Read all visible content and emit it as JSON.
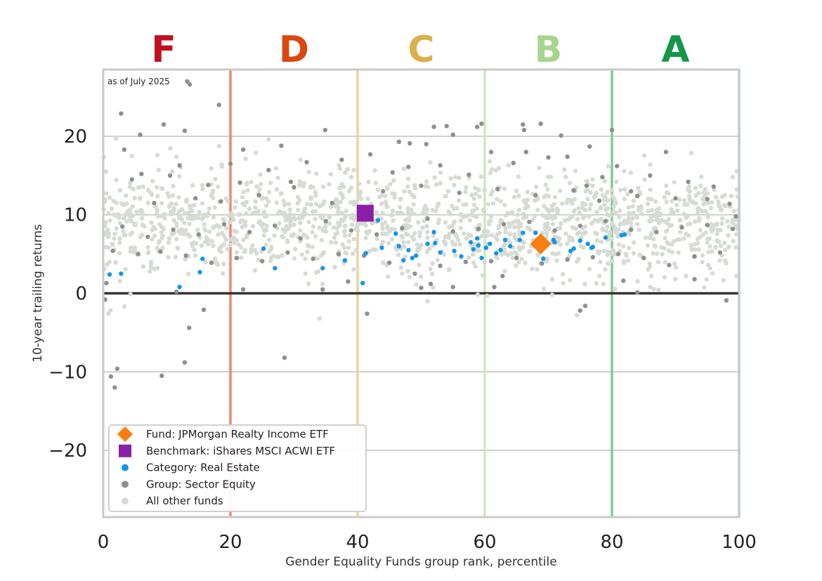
{
  "chart_data": {
    "type": "scatter",
    "xlabel": "Gender Equality Funds group rank, percentile",
    "ylabel": "10-year trailing returns",
    "xlim": [
      0,
      100
    ],
    "ylim": [
      -28.5,
      28.5
    ],
    "xticks": [
      "0",
      "20",
      "40",
      "60",
      "80",
      "100"
    ],
    "yticks": [
      "−20",
      "−10",
      "0",
      "10",
      "20"
    ],
    "annotation": "as of July 2025",
    "grades": [
      {
        "label": "F",
        "x": 9.5,
        "color": "#c0101f"
      },
      {
        "label": "D",
        "x": 30.0,
        "color": "#d9480f"
      },
      {
        "label": "C",
        "x": 50.0,
        "color": "#d9b04d"
      },
      {
        "label": "B",
        "x": 70.0,
        "color": "#a8d58e"
      },
      {
        "label": "A",
        "x": 90.0,
        "color": "#16964a"
      }
    ],
    "grade_boundaries": [
      {
        "x": 20,
        "color": "#ec8a6e"
      },
      {
        "x": 40,
        "color": "#ecd4a0"
      },
      {
        "x": 60,
        "color": "#cfe8c0"
      },
      {
        "x": 80,
        "color": "#7ecb94"
      },
      {
        "x": 100,
        "color": "#8fd0a4"
      }
    ],
    "grid": true,
    "legend_position": "lower-left",
    "series": [
      {
        "name": "Fund: JPMorgan Realty Income ETF",
        "marker": "diamond",
        "color": "#f77f0f",
        "points": [
          [
            68.8,
            6.3
          ]
        ]
      },
      {
        "name": "Benchmark: iShares MSCI ACWI ETF",
        "marker": "square",
        "color": "#8a1fa6",
        "points": [
          [
            41.2,
            10.2
          ]
        ]
      },
      {
        "name": "Category: Real Estate",
        "marker": "circle",
        "color": "#1296e8",
        "points": [
          [
            1.0,
            2.4
          ],
          [
            2.8,
            2.5
          ],
          [
            12.0,
            0.8
          ],
          [
            15.2,
            2.7
          ],
          [
            15.6,
            4.4
          ],
          [
            25.2,
            5.7
          ],
          [
            27.0,
            3.2
          ],
          [
            34.5,
            3.2
          ],
          [
            38.0,
            4.2
          ],
          [
            40.8,
            1.3
          ],
          [
            41.3,
            5.1
          ],
          [
            43.2,
            9.3
          ],
          [
            43.8,
            5.8
          ],
          [
            46.0,
            7.6
          ],
          [
            46.5,
            6.0
          ],
          [
            47.2,
            4.2
          ],
          [
            48.0,
            5.5
          ],
          [
            48.6,
            4.5
          ],
          [
            49.2,
            4.8
          ],
          [
            51.0,
            6.3
          ],
          [
            52.0,
            7.8
          ],
          [
            52.2,
            6.4
          ],
          [
            53.0,
            5.2
          ],
          [
            55.2,
            5.4
          ],
          [
            56.3,
            4.7
          ],
          [
            57.8,
            6.5
          ],
          [
            58.2,
            5.6
          ],
          [
            58.8,
            7.0
          ],
          [
            59.0,
            6.1
          ],
          [
            59.5,
            4.5
          ],
          [
            60.2,
            5.8
          ],
          [
            60.8,
            6.3
          ],
          [
            61.8,
            5.1
          ],
          [
            62.5,
            5.5
          ],
          [
            63.2,
            6.8
          ],
          [
            64.0,
            6.0
          ],
          [
            65.5,
            6.8
          ],
          [
            66.0,
            7.7
          ],
          [
            68.0,
            7.7
          ],
          [
            69.2,
            4.4
          ],
          [
            70.8,
            6.8
          ],
          [
            71.0,
            6.5
          ],
          [
            73.5,
            5.4
          ],
          [
            74.0,
            5.7
          ],
          [
            75.0,
            6.7
          ],
          [
            76.2,
            6.3
          ],
          [
            76.8,
            5.8
          ],
          [
            77.0,
            5.9
          ],
          [
            79.0,
            7.1
          ],
          [
            81.5,
            7.4
          ],
          [
            82.0,
            7.5
          ]
        ]
      },
      {
        "name": "Group: Sector Equity",
        "marker": "circle",
        "color": "#8f8f8f",
        "points": [
          [
            2.8,
            22.9
          ],
          [
            3.3,
            18.3
          ],
          [
            5.8,
            20.2
          ],
          [
            13.2,
            27.0
          ],
          [
            13.6,
            26.6
          ],
          [
            9.5,
            21.5
          ],
          [
            12.8,
            20.7
          ],
          [
            18.2,
            24.0
          ],
          [
            34.9,
            20.8
          ],
          [
            46.5,
            19.3
          ],
          [
            48.2,
            19.1
          ],
          [
            50.8,
            19.0
          ],
          [
            52.0,
            21.2
          ],
          [
            54.0,
            21.3
          ],
          [
            55.0,
            20.2
          ],
          [
            58.8,
            21.2
          ],
          [
            59.5,
            21.6
          ],
          [
            66.0,
            21.5
          ],
          [
            66.2,
            20.8
          ],
          [
            68.8,
            21.6
          ],
          [
            72.0,
            20.1
          ],
          [
            76.5,
            18.7
          ],
          [
            80.0,
            20.8
          ],
          [
            28.0,
            18.8
          ],
          [
            21.5,
            14.1
          ],
          [
            24.5,
            12.5
          ],
          [
            30.0,
            13.5
          ],
          [
            36.0,
            11.5
          ],
          [
            44.0,
            13.0
          ],
          [
            50.0,
            13.7
          ],
          [
            56.0,
            12.8
          ],
          [
            62.0,
            13.3
          ],
          [
            68.0,
            12.5
          ],
          [
            74.0,
            13.1
          ],
          [
            78.0,
            11.8
          ],
          [
            84.0,
            12.4
          ],
          [
            90.0,
            12.1
          ],
          [
            95.0,
            12.0
          ],
          [
            3.0,
            8.5
          ],
          [
            7.0,
            7.2
          ],
          [
            11.0,
            8.1
          ],
          [
            15.0,
            7.5
          ],
          [
            19.0,
            8.8
          ],
          [
            23.0,
            7.8
          ],
          [
            27.0,
            8.6
          ],
          [
            31.0,
            7.0
          ],
          [
            35.0,
            9.2
          ],
          [
            39.0,
            8.0
          ],
          [
            43.0,
            7.5
          ],
          [
            47.0,
            8.3
          ],
          [
            51.0,
            9.5
          ],
          [
            55.0,
            7.9
          ],
          [
            59.0,
            8.2
          ],
          [
            63.0,
            8.8
          ],
          [
            67.0,
            9.1
          ],
          [
            71.0,
            8.0
          ],
          [
            75.0,
            8.6
          ],
          [
            79.0,
            9.2
          ],
          [
            83.0,
            8.1
          ],
          [
            87.0,
            7.8
          ],
          [
            91.0,
            8.4
          ],
          [
            95.0,
            8.7
          ],
          [
            99.0,
            8.2
          ],
          [
            1.5,
            5.4
          ],
          [
            5.5,
            5.0
          ],
          [
            9.0,
            5.3
          ],
          [
            13.0,
            4.8
          ],
          [
            17.0,
            3.9
          ],
          [
            21.0,
            4.5
          ],
          [
            25.0,
            4.1
          ],
          [
            29.0,
            5.2
          ],
          [
            33.0,
            4.4
          ],
          [
            37.0,
            5.0
          ],
          [
            41.0,
            4.8
          ],
          [
            45.0,
            3.9
          ],
          [
            49.0,
            2.5
          ],
          [
            53.0,
            3.5
          ],
          [
            57.0,
            4.0
          ],
          [
            61.0,
            4.1
          ],
          [
            65.0,
            4.5
          ],
          [
            69.0,
            3.8
          ],
          [
            73.0,
            4.3
          ],
          [
            77.0,
            4.6
          ],
          [
            81.0,
            5.0
          ],
          [
            85.0,
            4.5
          ],
          [
            89.0,
            3.6
          ],
          [
            93.0,
            4.7
          ],
          [
            97.0,
            5.2
          ],
          [
            0.5,
            1.3
          ],
          [
            0.3,
            -0.8
          ],
          [
            11.5,
            0.2
          ],
          [
            22.0,
            0.5
          ],
          [
            34.5,
            0.5
          ],
          [
            38.5,
            1.5
          ],
          [
            41.5,
            -2.6
          ],
          [
            50.0,
            0.7
          ],
          [
            51.5,
            1.2
          ],
          [
            55.0,
            0.8
          ],
          [
            61.5,
            0.8
          ],
          [
            62.8,
            2.2
          ],
          [
            75.0,
            -2.2
          ],
          [
            75.8,
            -1.6
          ],
          [
            81.8,
            1.6
          ],
          [
            84.0,
            0.1
          ],
          [
            93.0,
            1.8
          ],
          [
            98.0,
            -0.9
          ],
          [
            15.8,
            -2.1
          ],
          [
            13.5,
            -4.4
          ],
          [
            12.8,
            -8.8
          ],
          [
            28.5,
            -8.2
          ],
          [
            9.2,
            -10.5
          ],
          [
            2.2,
            -9.6
          ],
          [
            1.2,
            -10.6
          ],
          [
            1.8,
            -12.0
          ],
          [
            4.5,
            14.5
          ],
          [
            6.0,
            15.2
          ],
          [
            8.0,
            11.5
          ],
          [
            10.5,
            15.0
          ],
          [
            12.0,
            16.3
          ],
          [
            14.5,
            12.1
          ],
          [
            16.5,
            13.8
          ],
          [
            18.5,
            11.7
          ],
          [
            20.0,
            16.5
          ],
          [
            22.0,
            18.3
          ],
          [
            26.0,
            15.7
          ],
          [
            29.5,
            14.2
          ],
          [
            32.0,
            16.7
          ],
          [
            37.5,
            17.0
          ],
          [
            42.0,
            17.7
          ],
          [
            45.5,
            15.4
          ],
          [
            48.0,
            16.1
          ],
          [
            53.0,
            16.3
          ],
          [
            57.5,
            15.1
          ],
          [
            61.0,
            18.0
          ],
          [
            64.5,
            16.6
          ],
          [
            66.5,
            18.0
          ],
          [
            70.0,
            17.3
          ],
          [
            73.0,
            17.4
          ],
          [
            76.0,
            13.7
          ],
          [
            78.5,
            14.8
          ],
          [
            80.8,
            16.2
          ],
          [
            83.0,
            13.0
          ],
          [
            86.0,
            15.0
          ],
          [
            88.5,
            18.0
          ],
          [
            92.0,
            14.2
          ],
          [
            96.0,
            13.6
          ],
          [
            98.5,
            11.4
          ],
          [
            99.5,
            9.8
          ]
        ]
      },
      {
        "name": "All other funds",
        "marker": "circle",
        "color": "#d6dbd4",
        "generator": {
          "count": 1500,
          "x_range": [
            0,
            100
          ],
          "y_center": 8.8,
          "y_spread": 4.2
        },
        "points": [
          [
            2.0,
            19.7
          ],
          [
            8.5,
            17.6
          ],
          [
            11.5,
            17.4
          ],
          [
            17.0,
            15.9
          ],
          [
            26.0,
            19.6
          ],
          [
            31.0,
            17.0
          ],
          [
            34.0,
            -3.2
          ],
          [
            51.0,
            -1.0
          ],
          [
            74.5,
            -2.8
          ],
          [
            86.0,
            0.8
          ],
          [
            0.8,
            -2.6
          ],
          [
            4.5,
            17.5
          ],
          [
            99.0,
            14.8
          ],
          [
            24.0,
            17.9
          ],
          [
            39.0,
            14.8
          ]
        ]
      }
    ]
  }
}
